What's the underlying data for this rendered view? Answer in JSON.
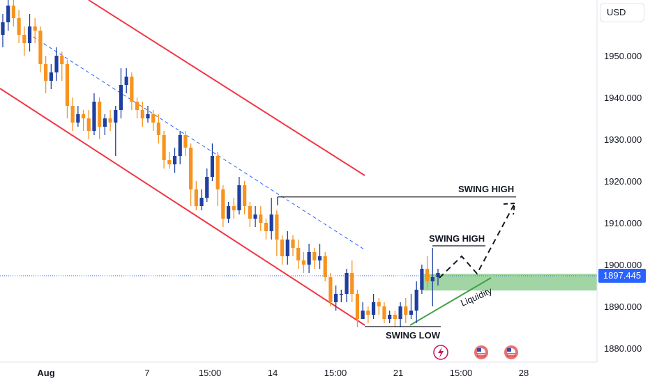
{
  "chart_data": {
    "type": "candlestick",
    "currency": "USD",
    "y_ticks": [
      "1950.000",
      "1940.000",
      "1930.000",
      "1920.000",
      "1910.000",
      "1900.000",
      "1890.000",
      "1880.000"
    ],
    "x_ticks": [
      "Aug",
      "7",
      "15:00",
      "14",
      "15:00",
      "21",
      "15:00",
      "28"
    ],
    "ylim": [
      1877,
      1963
    ],
    "current_price": "1897.445",
    "up_color": "#1e3fa0",
    "down_color": "#f7931e",
    "channel_color": "#f23645",
    "zone_color": "#81c784",
    "liquidity_line_color": "#43a047",
    "annotations": {
      "swing_high_top": "SWING HIGH",
      "swing_high_mid": "SWING HIGH",
      "swing_low": "SWING LOW",
      "liquidity": "Liquidity"
    },
    "levels": {
      "swing_high_top": 1916.2,
      "swing_high_mid": 1904.5,
      "swing_low": 1885.3,
      "zone_top": 1897.8,
      "zone_bottom": 1893.8
    },
    "candles": [
      [
        1955,
        1958,
        1952,
        1960
      ],
      [
        1958,
        1962,
        1956,
        1964
      ],
      [
        1962,
        1959,
        1957,
        1964
      ],
      [
        1959,
        1955,
        1953,
        1961
      ],
      [
        1955,
        1953,
        1950,
        1957
      ],
      [
        1953,
        1957,
        1951,
        1960
      ],
      [
        1957,
        1956,
        1953,
        1959
      ],
      [
        1956,
        1948,
        1946,
        1957
      ],
      [
        1948,
        1944,
        1941,
        1950
      ],
      [
        1944,
        1946,
        1942,
        1948
      ],
      [
        1946,
        1950,
        1944,
        1952
      ],
      [
        1950,
        1948,
        1944,
        1951
      ],
      [
        1948,
        1938,
        1935,
        1949
      ],
      [
        1938,
        1934,
        1932,
        1940
      ],
      [
        1934,
        1936,
        1933,
        1938
      ],
      [
        1936,
        1935,
        1932,
        1937
      ],
      [
        1935,
        1932,
        1930,
        1937
      ],
      [
        1932,
        1939,
        1931,
        1941
      ],
      [
        1939,
        1933,
        1930,
        1940
      ],
      [
        1933,
        1935,
        1931,
        1936
      ],
      [
        1935,
        1934,
        1932,
        1937
      ],
      [
        1934,
        1937,
        1926,
        1938
      ],
      [
        1937,
        1943,
        1935,
        1947
      ],
      [
        1943,
        1945,
        1941,
        1947
      ],
      [
        1945,
        1939,
        1937,
        1946
      ],
      [
        1939,
        1937,
        1935,
        1940
      ],
      [
        1937,
        1935,
        1933,
        1939
      ],
      [
        1935,
        1936,
        1934,
        1938
      ],
      [
        1936,
        1934,
        1932,
        1937
      ],
      [
        1934,
        1931,
        1929,
        1936
      ],
      [
        1931,
        1925,
        1923,
        1932
      ],
      [
        1925,
        1924,
        1923,
        1927
      ],
      [
        1924,
        1926,
        1922,
        1928
      ],
      [
        1926,
        1931,
        1924,
        1932
      ],
      [
        1931,
        1928,
        1926,
        1932
      ],
      [
        1928,
        1918,
        1914,
        1929
      ],
      [
        1918,
        1914,
        1913,
        1920
      ],
      [
        1914,
        1916,
        1913,
        1918
      ],
      [
        1916,
        1921,
        1915,
        1923
      ],
      [
        1921,
        1926,
        1920,
        1929
      ],
      [
        1926,
        1918,
        1914,
        1927
      ],
      [
        1918,
        1911,
        1909,
        1919
      ],
      [
        1911,
        1914,
        1910,
        1915
      ],
      [
        1914,
        1913,
        1911,
        1916
      ],
      [
        1913,
        1919,
        1912,
        1921
      ],
      [
        1919,
        1914,
        1912,
        1920
      ],
      [
        1914,
        1911,
        1909,
        1915
      ],
      [
        1911,
        1912,
        1909,
        1914
      ],
      [
        1912,
        1910,
        1908,
        1914
      ],
      [
        1910,
        1908,
        1906,
        1911
      ],
      [
        1908,
        1912,
        1906,
        1916
      ],
      [
        1912,
        1906,
        1902,
        1913
      ],
      [
        1906,
        1902,
        1900,
        1907
      ],
      [
        1902,
        1906,
        1900,
        1908
      ],
      [
        1906,
        1904,
        1902,
        1907
      ],
      [
        1904,
        1901,
        1899,
        1906
      ],
      [
        1901,
        1900,
        1898,
        1903
      ],
      [
        1900,
        1903,
        1898,
        1905
      ],
      [
        1903,
        1901,
        1899,
        1904
      ],
      [
        1901,
        1902,
        1899,
        1905
      ],
      [
        1902,
        1897,
        1896,
        1903
      ],
      [
        1897,
        1891,
        1890,
        1898
      ],
      [
        1891,
        1893,
        1889,
        1895
      ],
      [
        1893,
        1893,
        1891,
        1894
      ],
      [
        1893,
        1898,
        1891,
        1899
      ],
      [
        1898,
        1893,
        1891,
        1901
      ],
      [
        1893,
        1887,
        1885,
        1894
      ],
      [
        1887,
        1889,
        1887,
        1891
      ],
      [
        1889,
        1888,
        1886,
        1890
      ],
      [
        1888,
        1891,
        1887,
        1893
      ],
      [
        1891,
        1890,
        1888,
        1892
      ],
      [
        1890,
        1887,
        1886,
        1891
      ],
      [
        1887,
        1888,
        1886,
        1889
      ],
      [
        1888,
        1887,
        1885,
        1889
      ],
      [
        1887,
        1890,
        1885,
        1891
      ],
      [
        1890,
        1888,
        1886,
        1892
      ],
      [
        1888,
        1889,
        1887,
        1893
      ],
      [
        1889,
        1894,
        1886,
        1896
      ],
      [
        1894,
        1899,
        1893,
        1900
      ],
      [
        1899,
        1896,
        1894,
        1902
      ],
      [
        1896,
        1897,
        1890,
        1904
      ],
      [
        1897,
        1898,
        1895,
        1899
      ]
    ]
  }
}
